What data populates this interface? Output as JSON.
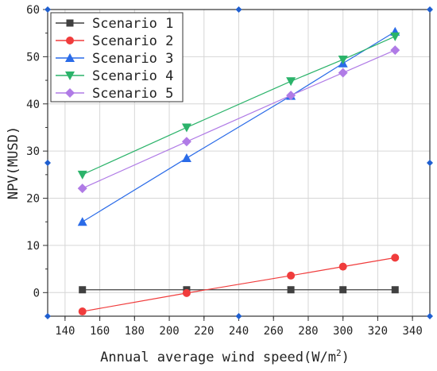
{
  "chart_data": {
    "type": "line",
    "xlabel": "Annual average wind speed(W/m",
    "xlabel_sup": "2",
    "xlabel_close": ")",
    "ylabel": "NPV(MUSD)",
    "xlim": [
      130,
      350
    ],
    "ylim": [
      -5,
      60
    ],
    "xticks": [
      "140",
      "160",
      "180",
      "200",
      "220",
      "240",
      "260",
      "280",
      "300",
      "320",
      "340"
    ],
    "yticks": [
      "0",
      "10",
      "20",
      "30",
      "40",
      "50",
      "60"
    ],
    "grid": true,
    "legend_position": "top-left",
    "x": [
      150,
      210,
      270,
      300,
      330
    ],
    "series": [
      {
        "name": "Scenario 1",
        "values": [
          0.6,
          0.6,
          0.6,
          0.6,
          0.6
        ],
        "color": "#404040",
        "marker": "square"
      },
      {
        "name": "Scenario 2",
        "values": [
          -4.0,
          -0.1,
          3.6,
          5.5,
          7.4
        ],
        "color": "#f03c3c",
        "marker": "circle"
      },
      {
        "name": "Scenario 3",
        "values": [
          15.0,
          28.5,
          41.7,
          48.6,
          55.3
        ],
        "color": "#2a6be8",
        "marker": "triangle-up"
      },
      {
        "name": "Scenario 4",
        "values": [
          25.0,
          35.0,
          44.8,
          49.4,
          54.3
        ],
        "color": "#2bb36a",
        "marker": "triangle-down"
      },
      {
        "name": "Scenario 5",
        "values": [
          22.1,
          32.0,
          41.8,
          46.6,
          51.4
        ],
        "color": "#b07be6",
        "marker": "diamond"
      }
    ]
  }
}
